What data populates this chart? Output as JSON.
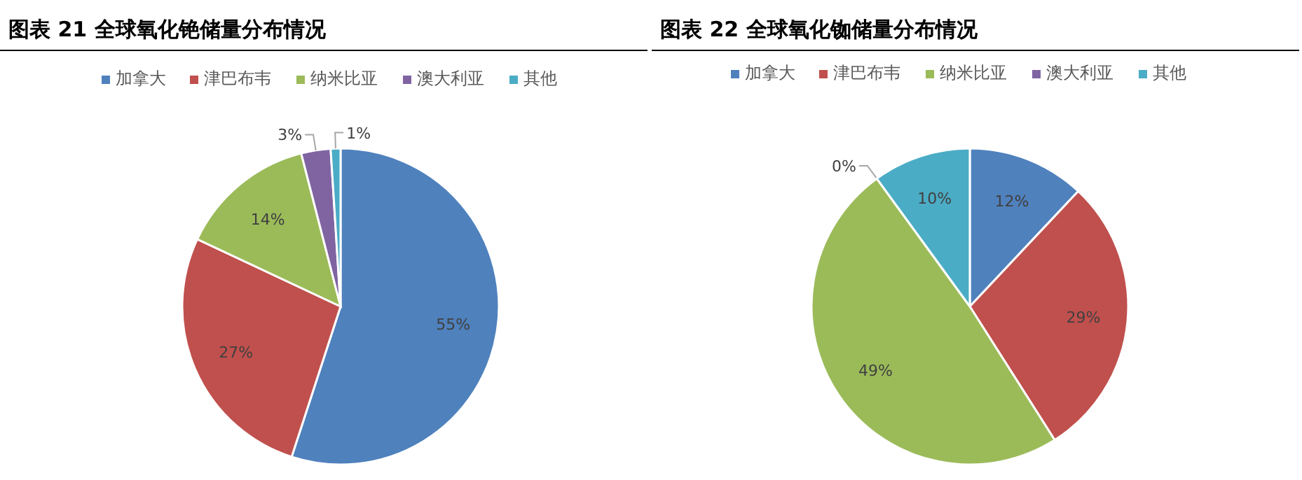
{
  "chart_data": [
    {
      "type": "pie",
      "title": "图表 21 全球氧化铯储量分布情况",
      "categories": [
        "加拿大",
        "津巴布韦",
        "纳米比亚",
        "澳大利亚",
        "其他"
      ],
      "values": [
        55,
        27,
        14,
        3,
        1
      ],
      "value_labels": [
        "55%",
        "27%",
        "14%",
        "3%",
        "1%"
      ],
      "colors": [
        "#4f81bd",
        "#c0504d",
        "#9bbb59",
        "#8064a2",
        "#4bacc6"
      ],
      "legend": "top"
    },
    {
      "type": "pie",
      "title": "图表 22 全球氧化铷储量分布情况",
      "categories": [
        "加拿大",
        "津巴布韦",
        "纳米比亚",
        "澳大利亚",
        "其他"
      ],
      "values": [
        12,
        29,
        49,
        0,
        10
      ],
      "value_labels": [
        "12%",
        "29%",
        "49%",
        "0%",
        "10%"
      ],
      "colors": [
        "#4f81bd",
        "#c0504d",
        "#9bbb59",
        "#8064a2",
        "#4bacc6"
      ],
      "legend": "top"
    }
  ]
}
